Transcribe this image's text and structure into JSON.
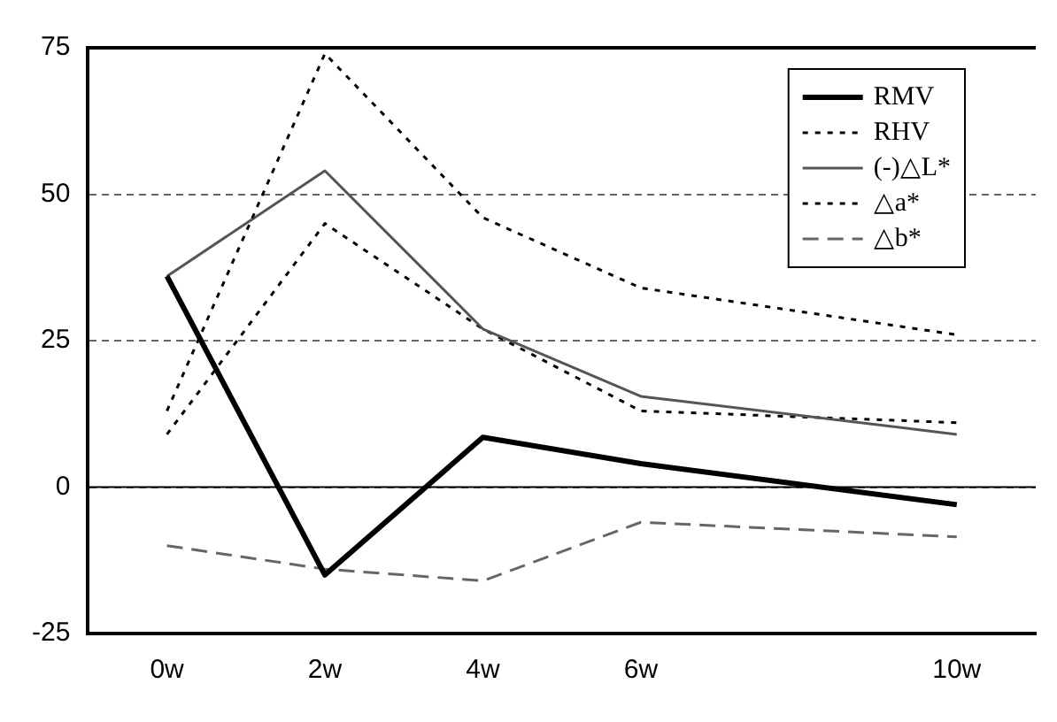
{
  "chart_data": {
    "type": "line",
    "x": [
      0,
      2,
      4,
      6,
      10
    ],
    "xlim": [
      -1,
      11
    ],
    "xticks": [
      {
        "value": 0,
        "label": "0w"
      },
      {
        "value": 2,
        "label": "2w"
      },
      {
        "value": 4,
        "label": "4w"
      },
      {
        "value": 6,
        "label": "6w"
      },
      {
        "value": 10,
        "label": "10w"
      }
    ],
    "ylim": [
      -25,
      75
    ],
    "yticks": [
      -25,
      0,
      25,
      50,
      75
    ],
    "grid": "y",
    "legend": "top right",
    "marker": "none",
    "ref_lines": [
      {
        "axis": "y",
        "value": 0,
        "color": "#000000",
        "line_style": "solid"
      }
    ],
    "series": [
      {
        "name": "RMV",
        "color": "#000000",
        "line_style": "solid",
        "values": [
          36,
          -15,
          8.5,
          4,
          -3
        ]
      },
      {
        "name": "RHV",
        "color": "#000000",
        "line_style": "dotted",
        "values": [
          13,
          74,
          46,
          34,
          26
        ]
      },
      {
        "name": "(-)△L*",
        "color": "#555555",
        "line_style": "solid",
        "values": [
          36,
          54,
          27,
          15.5,
          9
        ]
      },
      {
        "name": "△a*",
        "color": "#000000",
        "line_style": "dotted",
        "values": [
          9,
          45,
          27,
          13,
          11
        ]
      },
      {
        "name": "△b*",
        "color": "#666666",
        "line_style": "dashed",
        "values": [
          -10,
          -14,
          -16,
          -6,
          -8.5
        ]
      }
    ]
  }
}
